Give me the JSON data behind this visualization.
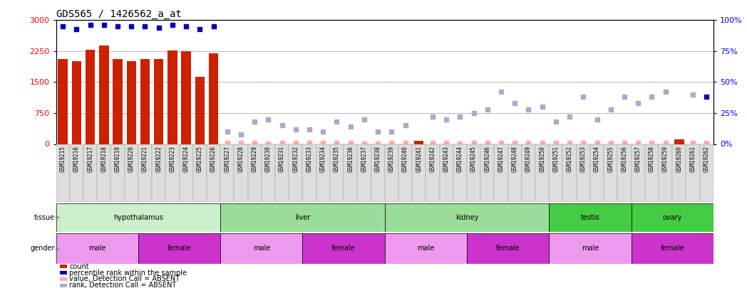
{
  "title": "GDS565 / 1426562_a_at",
  "samples": [
    "GSM19215",
    "GSM19216",
    "GSM19217",
    "GSM19218",
    "GSM19219",
    "GSM19220",
    "GSM19221",
    "GSM19222",
    "GSM19223",
    "GSM19224",
    "GSM19225",
    "GSM19226",
    "GSM19227",
    "GSM19228",
    "GSM19229",
    "GSM19230",
    "GSM19231",
    "GSM19232",
    "GSM19233",
    "GSM19234",
    "GSM19235",
    "GSM19236",
    "GSM19237",
    "GSM19238",
    "GSM19239",
    "GSM19240",
    "GSM19241",
    "GSM19242",
    "GSM19243",
    "GSM19244",
    "GSM19245",
    "GSM19246",
    "GSM19247",
    "GSM19248",
    "GSM19249",
    "GSM19250",
    "GSM19251",
    "GSM19252",
    "GSM19253",
    "GSM19254",
    "GSM19255",
    "GSM19256",
    "GSM19257",
    "GSM19258",
    "GSM19259",
    "GSM19260",
    "GSM19261",
    "GSM19262"
  ],
  "count_values": [
    2050,
    2000,
    2280,
    2380,
    2050,
    2000,
    2050,
    2050,
    2270,
    2250,
    1620,
    2200,
    0,
    0,
    0,
    0,
    0,
    0,
    0,
    0,
    0,
    0,
    0,
    0,
    0,
    0,
    80,
    0,
    0,
    0,
    0,
    0,
    0,
    0,
    0,
    0,
    0,
    0,
    0,
    0,
    0,
    0,
    0,
    0,
    0,
    120,
    0,
    0
  ],
  "count_absent": [
    false,
    false,
    false,
    false,
    false,
    false,
    false,
    false,
    false,
    false,
    false,
    false,
    true,
    true,
    true,
    true,
    true,
    true,
    true,
    true,
    true,
    true,
    true,
    true,
    true,
    true,
    false,
    true,
    true,
    true,
    true,
    true,
    true,
    true,
    true,
    true,
    true,
    true,
    true,
    true,
    true,
    true,
    true,
    true,
    true,
    false,
    true,
    true
  ],
  "count_absent_values": [
    0,
    0,
    0,
    0,
    0,
    0,
    0,
    0,
    0,
    0,
    0,
    0,
    30,
    20,
    25,
    15,
    20,
    18,
    22,
    18,
    25,
    20,
    15,
    12,
    18,
    20,
    0,
    22,
    20,
    15,
    18,
    22,
    25,
    20,
    18,
    20,
    18,
    20,
    25,
    18,
    22,
    20,
    18,
    20,
    22,
    0,
    18,
    20
  ],
  "rank_values": [
    95,
    93,
    96,
    96,
    95,
    95,
    95,
    94,
    96,
    95,
    93,
    95,
    null,
    null,
    null,
    null,
    null,
    null,
    null,
    null,
    null,
    null,
    null,
    null,
    null,
    null,
    null,
    null,
    null,
    null,
    null,
    null,
    null,
    null,
    null,
    null,
    null,
    null,
    null,
    null,
    null,
    null,
    null,
    null,
    null,
    null,
    null,
    null
  ],
  "rank_absent_values": [
    null,
    null,
    null,
    null,
    null,
    null,
    null,
    null,
    null,
    null,
    null,
    null,
    10,
    8,
    18,
    20,
    15,
    12,
    12,
    10,
    18,
    14,
    20,
    10,
    10,
    15,
    null,
    22,
    20,
    22,
    25,
    28,
    42,
    33,
    28,
    30,
    18,
    22,
    38,
    20,
    28,
    38,
    33,
    38,
    42,
    null,
    40,
    38
  ],
  "rank_absent_dark": [
    false,
    false,
    false,
    false,
    false,
    false,
    false,
    false,
    false,
    false,
    false,
    false,
    false,
    false,
    false,
    false,
    false,
    false,
    false,
    false,
    false,
    false,
    false,
    false,
    false,
    false,
    false,
    false,
    false,
    false,
    false,
    false,
    false,
    false,
    false,
    false,
    false,
    false,
    false,
    false,
    false,
    false,
    false,
    false,
    false,
    false,
    false,
    true
  ],
  "tissue_regions": [
    {
      "label": "hypothalamus",
      "start": 0,
      "end": 11,
      "color": "#d0f0d0"
    },
    {
      "label": "liver",
      "start": 12,
      "end": 23,
      "color": "#a8dba8"
    },
    {
      "label": "kidney",
      "start": 24,
      "end": 35,
      "color": "#a8dba8"
    },
    {
      "label": "testis",
      "start": 36,
      "end": 41,
      "color": "#55cc55"
    },
    {
      "label": "ovary",
      "start": 42,
      "end": 47,
      "color": "#55cc55"
    }
  ],
  "gender_regions": [
    {
      "label": "male",
      "start": 0,
      "end": 5,
      "color": "#dd88dd"
    },
    {
      "label": "female",
      "start": 6,
      "end": 11,
      "color": "#cc33cc"
    },
    {
      "label": "male",
      "start": 12,
      "end": 17,
      "color": "#dd88dd"
    },
    {
      "label": "female",
      "start": 18,
      "end": 23,
      "color": "#cc33cc"
    },
    {
      "label": "male",
      "start": 24,
      "end": 29,
      "color": "#dd88dd"
    },
    {
      "label": "female",
      "start": 30,
      "end": 35,
      "color": "#cc33cc"
    },
    {
      "label": "male",
      "start": 36,
      "end": 41,
      "color": "#dd88dd"
    },
    {
      "label": "female",
      "start": 42,
      "end": 47,
      "color": "#cc33cc"
    }
  ],
  "ylim_left": [
    0,
    3000
  ],
  "ylim_right": [
    0,
    100
  ],
  "yticks_left": [
    0,
    750,
    1500,
    2250,
    3000
  ],
  "yticks_right": [
    0,
    25,
    50,
    75,
    100
  ],
  "bar_color": "#cc2200",
  "rank_color_present": "#0000bb",
  "rank_color_absent": "#aaaacc",
  "rank_color_absent_dark": "#0000bb",
  "value_color_absent": "#ffaaaa",
  "title_fontsize": 10,
  "tick_label_fontsize": 5.5,
  "row_label_fontsize": 7,
  "legend_fontsize": 7
}
